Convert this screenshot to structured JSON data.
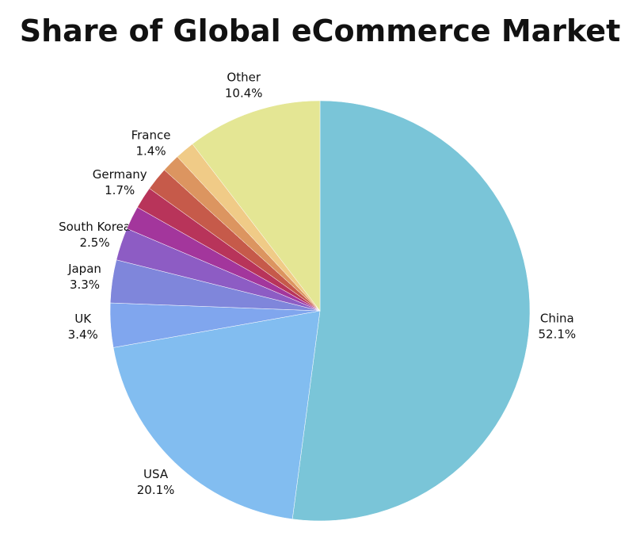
{
  "chart_data": {
    "type": "pie",
    "title": "Share of Global eCommerce Market",
    "categories": [
      "China",
      "USA",
      "UK",
      "Japan",
      "South Korea",
      null,
      "Germany",
      null,
      "France",
      null,
      "Other"
    ],
    "values": [
      52.1,
      20.1,
      3.4,
      3.3,
      2.5,
      1.8,
      1.7,
      1.8,
      1.4,
      1.5,
      10.4
    ],
    "value_labels": [
      "52.1%",
      "20.1%",
      "3.4%",
      "3.3%",
      "2.5%",
      null,
      "1.7%",
      null,
      "1.4%",
      null,
      "10.4%"
    ],
    "colors": [
      "#7ac5d8",
      "#82bdf0",
      "#80a6ee",
      "#7f86db",
      "#8d5cc4",
      "#a3369c",
      "#b8345a",
      "#c65a4a",
      "#dc9560",
      "#f0cb87",
      "#e4e694"
    ]
  }
}
